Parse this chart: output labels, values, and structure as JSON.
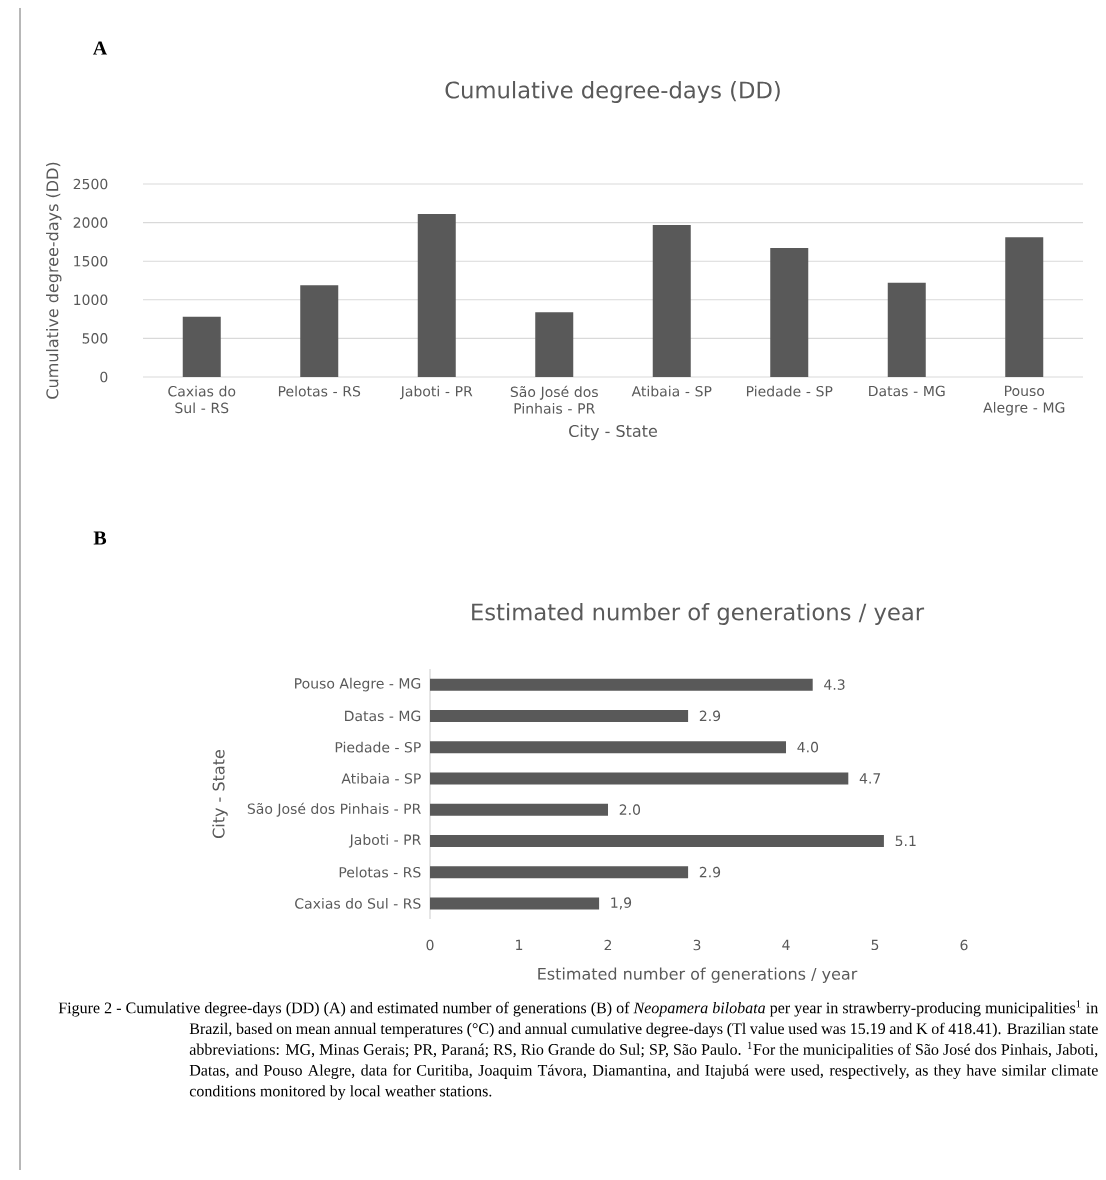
{
  "chart_data": [
    {
      "type": "bar",
      "title": "Cumulative degree-days (DD)",
      "xlabel": "City - State",
      "ylabel": "Cumulative degree-days (DD)",
      "categories": [
        "Caxias do Sul - RS",
        "Pelotas - RS",
        "Jaboti - PR",
        "São José dos Pinhais - PR",
        "Atibaia - SP",
        "Piedade - SP",
        "Datas - MG",
        "Pouso Alegre - MG"
      ],
      "values": [
        780,
        1190,
        2110,
        840,
        1970,
        1670,
        1220,
        1810
      ],
      "color": "#595959",
      "ylim": [
        0,
        2500
      ],
      "yticks": [
        0,
        500,
        1000,
        1500,
        2000,
        2500
      ],
      "grid": "y",
      "annotations": [
        "A"
      ]
    },
    {
      "type": "bar",
      "orientation": "horizontal",
      "title": "Estimated number of generations / year",
      "xlabel": "Estimated number of generations / year",
      "ylabel": "City - State",
      "categories": [
        "Pouso Alegre - MG",
        "Datas - MG",
        "Piedade - SP",
        "Atibaia - SP",
        "São José dos Pinhais - PR",
        "Jaboti - PR",
        "Pelotas - RS",
        "Caxias do Sul - RS"
      ],
      "values": [
        4.3,
        2.9,
        4.0,
        4.7,
        2.0,
        5.1,
        2.9,
        1.9
      ],
      "value_labels": [
        "4.3",
        "2.9",
        "4.0",
        "4.7",
        "2.0",
        "5.1",
        "2.9",
        "1,9"
      ],
      "color": "#595959",
      "xlim": [
        0,
        6
      ],
      "xticks": [
        0,
        1,
        2,
        3,
        4,
        5,
        6
      ],
      "annotations": [
        "B",
        "Figure 2 - Cumulative degree-days (DD) (A) and estimated number of generations (B) of *Neopamera bilobata* per year in strawberry-producing municipalities$^{1}$ in Brazil, based on mean annual temperatures (°C) and annual cumulative degree-days (Tl value used was 15.19 and K of 418.41). Brazilian state abbreviations: MG, Minas Gerais; PR, Paraná; RS, Rio Grande do Sul; SP, São Paulo. $^{1}$For the municipalities of São José dos Pinhais, Jaboti, Datas, and Pouso Alegre, data for Curitiba, Joaquim Távora, Diamantina, and Itajubá were used, respectively, as they have similar climate conditions monitored by local weather stations."
      ]
    }
  ]
}
